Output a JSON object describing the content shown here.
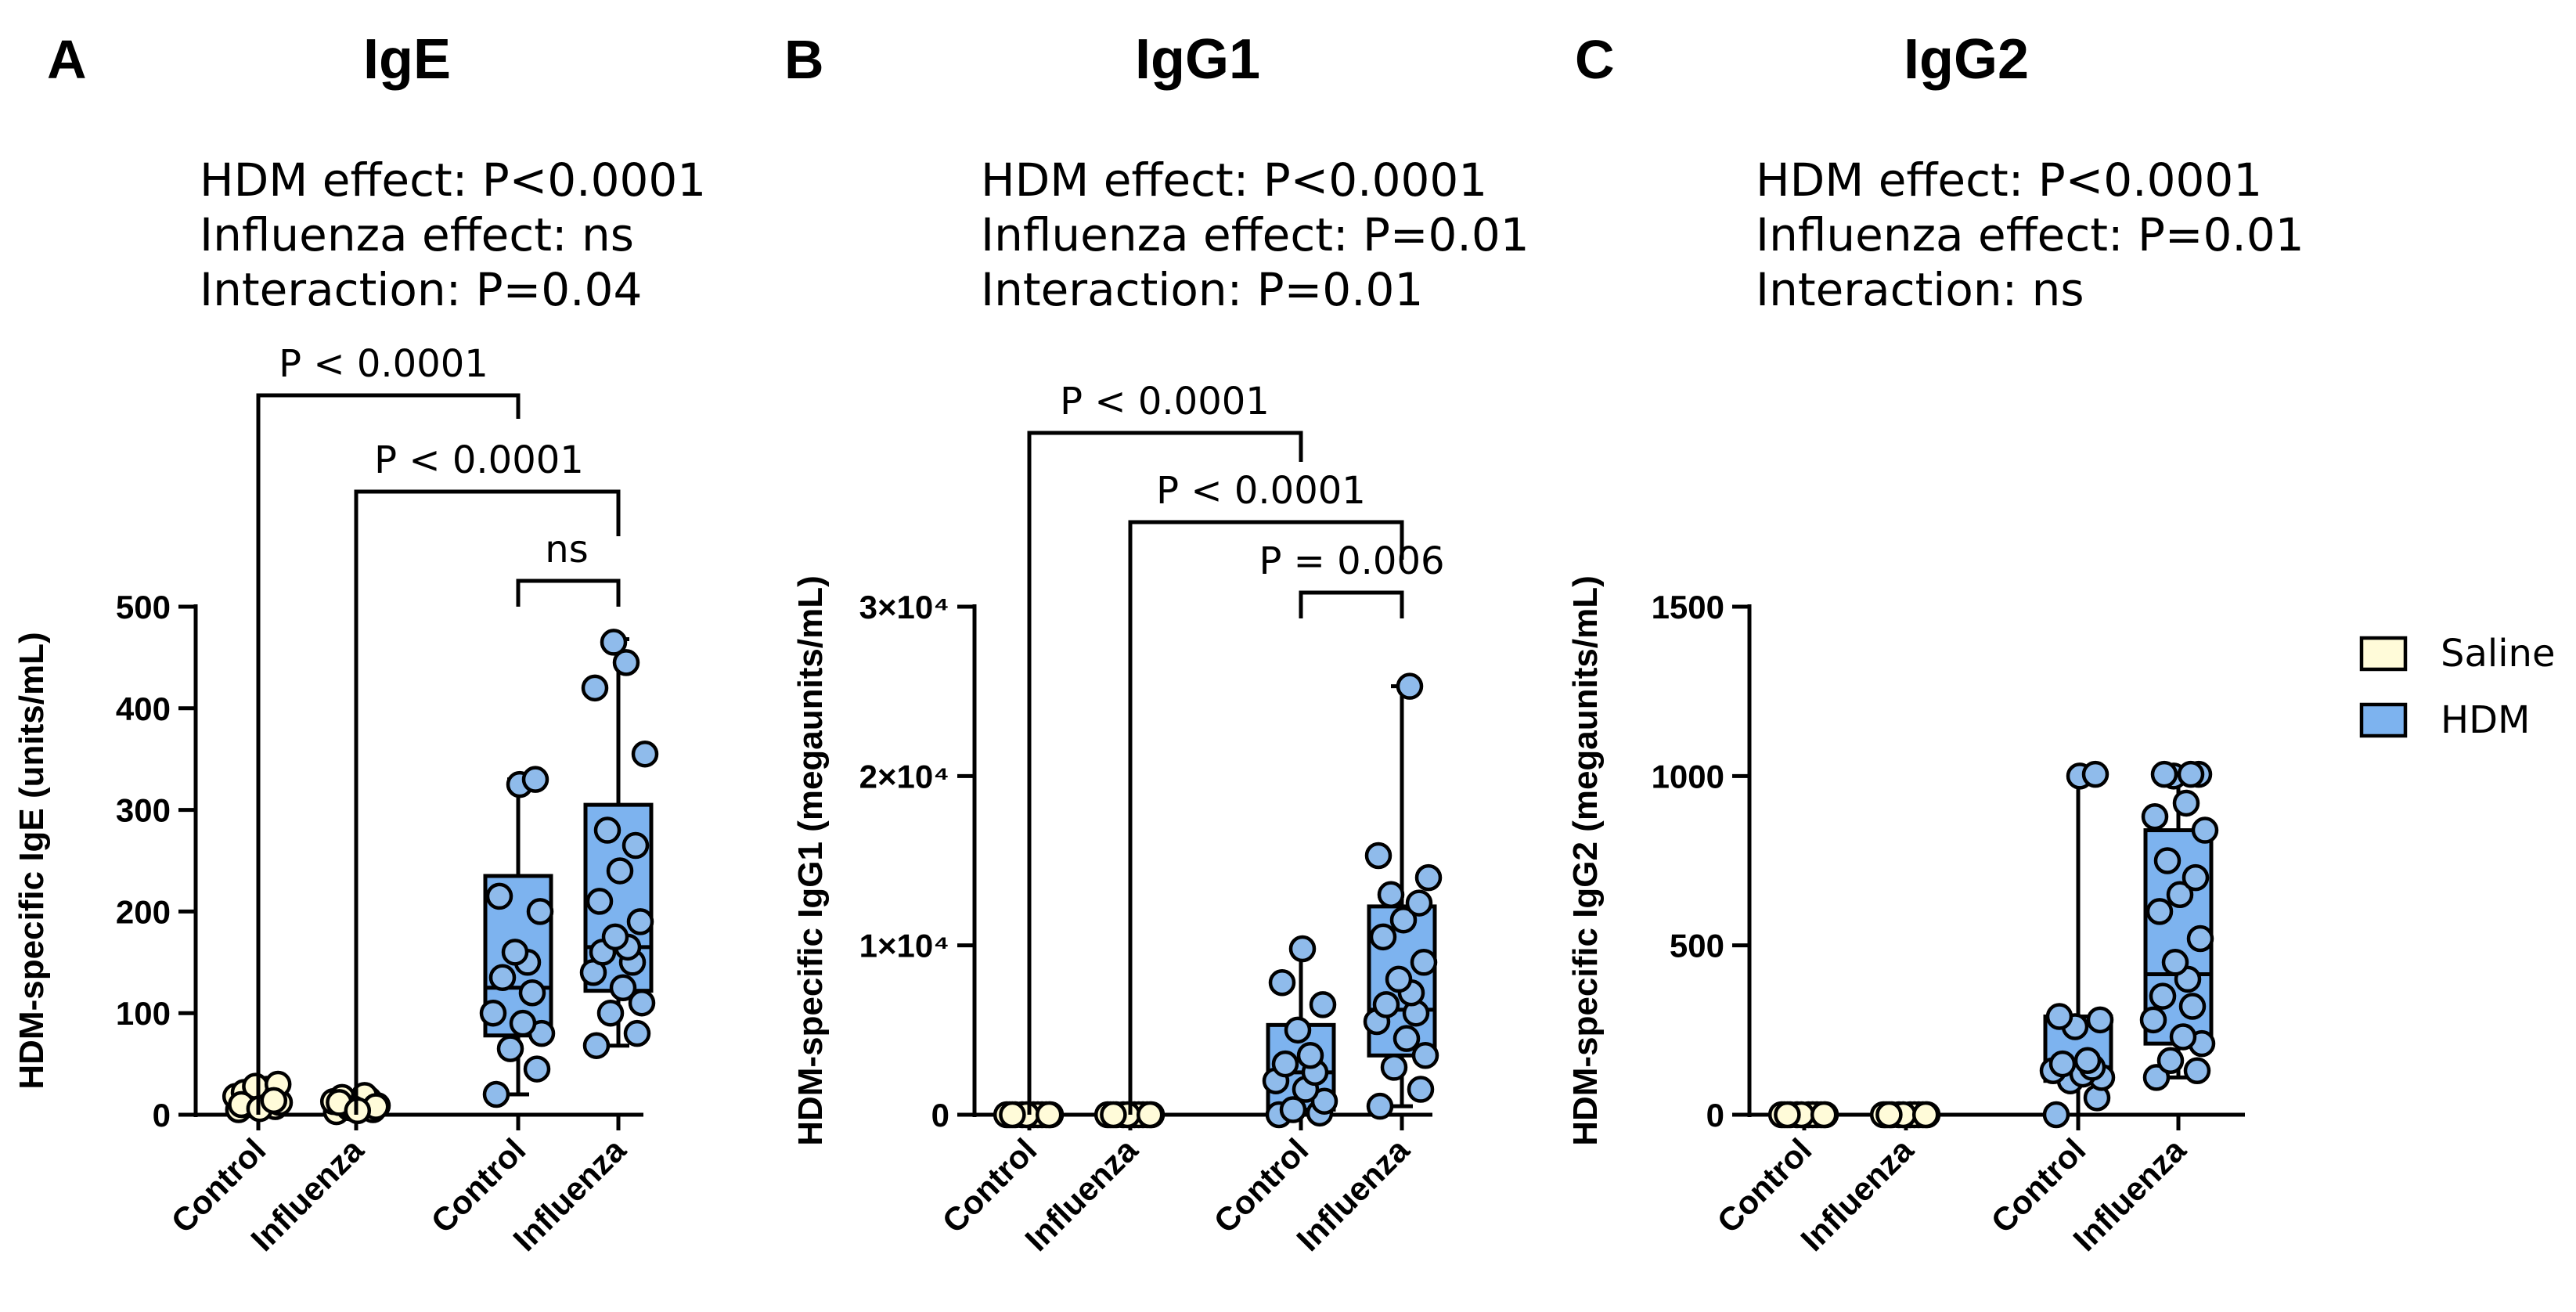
{
  "legend": {
    "items": [
      {
        "label": "Saline",
        "color": "#FFFBD9"
      },
      {
        "label": "HDM",
        "color": "#7DB3EF"
      }
    ]
  },
  "colors": {
    "saline": "#FFFBD9",
    "hdm": "#7DB3EF",
    "point_hdm": "#8FBBEB",
    "stroke": "#000000"
  },
  "chart_data": [
    {
      "type": "box",
      "panel_letter": "A",
      "title": "IgE",
      "stats": [
        "HDM effect: P<0.0001",
        "Influenza effect: ns",
        "Interaction: P=0.04"
      ],
      "ylabel": "HDM-specific IgE (units/mL)",
      "ylim": [
        0,
        500
      ],
      "yticks": [
        0,
        100,
        200,
        300,
        400,
        500
      ],
      "ytick_labels": [
        "0",
        "100",
        "200",
        "300",
        "400",
        "500"
      ],
      "categories": [
        "Control",
        "Influenza",
        "Control",
        "Influenza"
      ],
      "groups": [
        {
          "category": "Control",
          "treatment": "Saline",
          "box": null,
          "points": [
            5,
            8,
            10,
            12,
            15,
            18,
            20,
            22,
            25,
            28,
            30,
            10,
            6,
            14
          ]
        },
        {
          "category": "Influenza",
          "treatment": "Saline",
          "box": null,
          "points": [
            3,
            5,
            7,
            9,
            11,
            13,
            15,
            17,
            19,
            6,
            8,
            12,
            4
          ]
        },
        {
          "category": "Control",
          "treatment": "HDM",
          "box": [
            20,
            78,
            125,
            235,
            330
          ],
          "points": [
            20,
            45,
            65,
            80,
            90,
            100,
            120,
            135,
            150,
            160,
            200,
            215,
            325,
            330
          ]
        },
        {
          "category": "Influenza",
          "treatment": "HDM",
          "box": [
            68,
            122,
            165,
            305,
            468
          ],
          "points": [
            68,
            80,
            100,
            110,
            125,
            140,
            150,
            160,
            165,
            175,
            190,
            210,
            240,
            265,
            280,
            355,
            420,
            445,
            465
          ]
        }
      ],
      "brackets": [
        {
          "from": 0,
          "to": 2,
          "label": "P < 0.0001"
        },
        {
          "from": 1,
          "to": 3,
          "label": "P < 0.0001"
        },
        {
          "from": 2,
          "to": 3,
          "label": "ns"
        }
      ]
    },
    {
      "type": "box",
      "panel_letter": "B",
      "title": "IgG1",
      "stats": [
        "HDM effect: P<0.0001",
        "Influenza effect: P=0.01",
        "Interaction: P=0.01"
      ],
      "ylabel": "HDM-specific IgG1 (megaunits/mL)",
      "ylim": [
        0,
        30000
      ],
      "yticks": [
        0,
        10000,
        20000,
        30000
      ],
      "ytick_labels": [
        "0",
        "1×10⁴",
        "2×10⁴",
        "3×10⁴"
      ],
      "categories": [
        "Control",
        "Influenza",
        "Control",
        "Influenza"
      ],
      "groups": [
        {
          "category": "Control",
          "treatment": "Saline",
          "box": null,
          "points": [
            0,
            0,
            0,
            0,
            0,
            0,
            0,
            0,
            0,
            0,
            0,
            0
          ]
        },
        {
          "category": "Influenza",
          "treatment": "Saline",
          "box": null,
          "points": [
            0,
            0,
            0,
            0,
            0,
            0,
            0,
            0,
            0,
            0,
            0,
            0
          ]
        },
        {
          "category": "Control",
          "treatment": "HDM",
          "box": [
            0,
            300,
            2500,
            5300,
            9900
          ],
          "points": [
            0,
            100,
            300,
            800,
            1500,
            2000,
            2500,
            3000,
            3500,
            5000,
            6500,
            7800,
            9800
          ]
        },
        {
          "category": "Influenza",
          "treatment": "HDM",
          "box": [
            500,
            3500,
            6200,
            12300,
            25300
          ],
          "points": [
            500,
            1500,
            2800,
            3500,
            4500,
            5500,
            6000,
            6500,
            7200,
            8000,
            9000,
            10500,
            11500,
            12500,
            13000,
            14000,
            15300,
            25300
          ]
        }
      ],
      "brackets": [
        {
          "from": 0,
          "to": 2,
          "label": "P < 0.0001"
        },
        {
          "from": 1,
          "to": 3,
          "label": "P < 0.0001"
        },
        {
          "from": 2,
          "to": 3,
          "label": "P = 0.006"
        }
      ]
    },
    {
      "type": "box",
      "panel_letter": "C",
      "title": "IgG2",
      "stats": [
        "HDM effect: P<0.0001",
        "Influenza effect: P=0.01",
        "Interaction: ns"
      ],
      "ylabel": "HDM-specific IgG2 (megaunits/mL)",
      "ylim": [
        0,
        1500
      ],
      "yticks": [
        0,
        500,
        1000,
        1500
      ],
      "ytick_labels": [
        "0",
        "500",
        "1000",
        "1500"
      ],
      "categories": [
        "Control",
        "Influenza",
        "Control",
        "Influenza"
      ],
      "groups": [
        {
          "category": "Control",
          "treatment": "Saline",
          "box": null,
          "points": [
            0,
            0,
            0,
            0,
            0,
            0,
            0,
            0,
            0,
            0,
            0,
            0
          ]
        },
        {
          "category": "Influenza",
          "treatment": "Saline",
          "box": null,
          "points": [
            0,
            0,
            0,
            0,
            0,
            0,
            0,
            0,
            0,
            0,
            0,
            0
          ]
        },
        {
          "category": "Control",
          "treatment": "HDM",
          "box": [
            0,
            100,
            140,
            290,
            1005
          ],
          "points": [
            0,
            50,
            100,
            110,
            120,
            130,
            140,
            150,
            160,
            260,
            280,
            290,
            1000,
            1005
          ]
        },
        {
          "category": "Influenza",
          "treatment": "HDM",
          "box": [
            110,
            210,
            415,
            840,
            1005
          ],
          "points": [
            110,
            130,
            160,
            210,
            230,
            280,
            320,
            350,
            400,
            450,
            520,
            600,
            650,
            700,
            750,
            840,
            880,
            920,
            1000,
            1005,
            1005,
            1005
          ]
        }
      ],
      "brackets": []
    }
  ]
}
